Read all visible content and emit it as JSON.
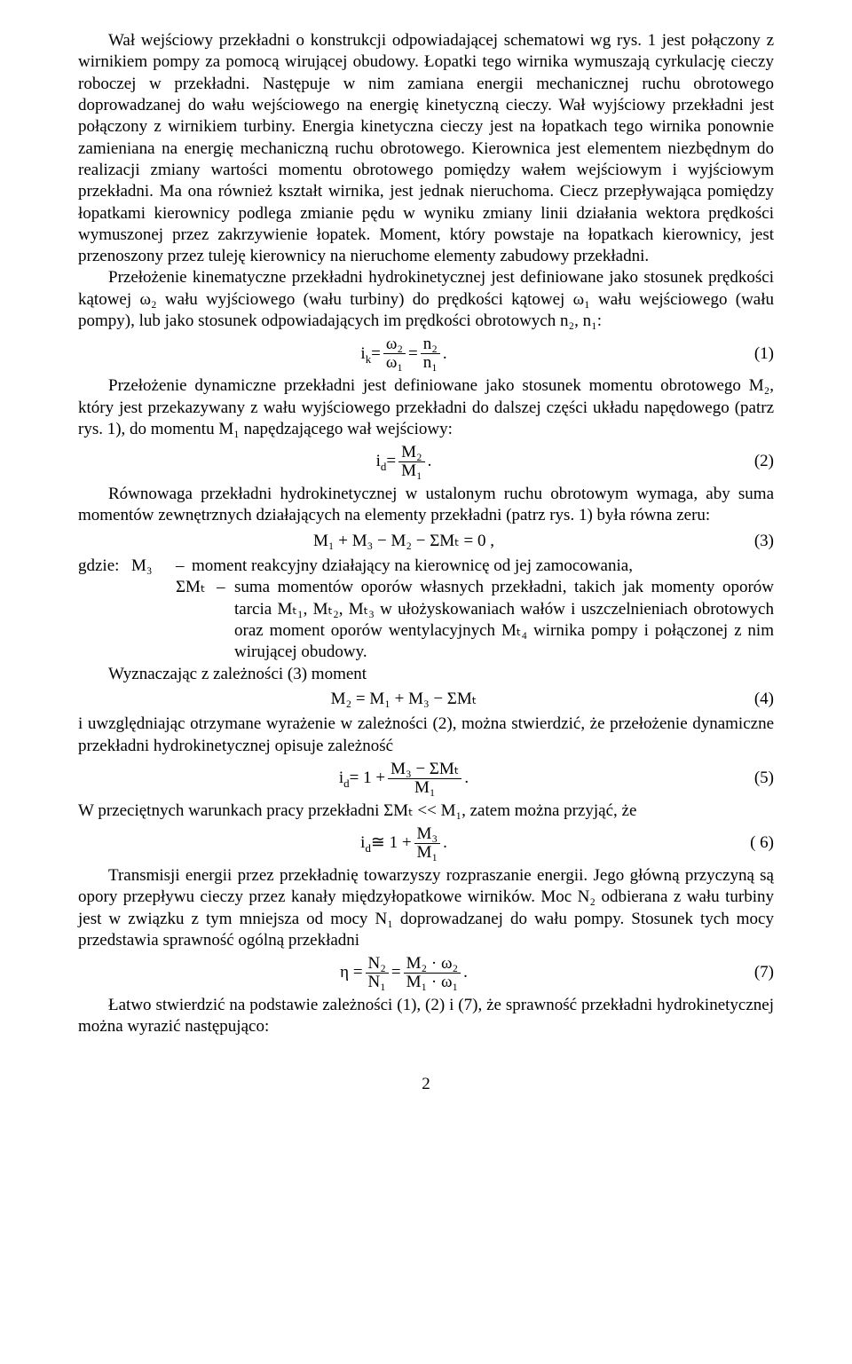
{
  "paragraphs": {
    "p1": "Wał wejściowy przekładni o konstrukcji odpowiadającej schematowi wg rys. 1 jest połączony z wirnikiem pompy za pomocą wirującej obudowy. Łopatki tego wirnika wymuszają cyrkulację cieczy roboczej w przekładni. Następuje w nim zamiana energii mechanicznej ruchu obrotowego doprowadzanej do wału wejściowego na energię kinetyczną cieczy. Wał wyjściowy przekładni jest połączony z wirnikiem turbiny. Energia kinetyczna cieczy jest na łopatkach tego wirnika ponownie zamieniana na energię mechaniczną ruchu obrotowego. Kierownica jest elementem niezbędnym do realizacji zmiany wartości momentu obrotowego pomiędzy wałem wejściowym i wyjściowym przekładni. Ma ona również kształt wirnika, jest jednak nieruchoma. Ciecz przepływająca pomiędzy łopatkami kierownicy podlega zmianie pędu w wyniku zmiany linii działania wektora prędkości wymuszonej przez zakrzywienie łopatek. Moment, który powstaje na łopatkach kierownicy, jest przenoszony przez tuleję kierownicy na nieruchome elementy zabudowy przekładni.",
    "p2": "Przełożenie kinematyczne przekładni hydrokinetycznej jest definiowane jako stosunek prędkości kątowej ω₂ wału wyjściowego (wału turbiny) do prędkości kątowej ω₁ wału wejściowego (wału pompy), lub jako stosunek odpowiadających im prędkości obrotowych n₂, n₁:",
    "p3": "Przełożenie dynamiczne przekładni jest definiowane jako stosunek momentu obrotowego M₂, który jest przekazywany z wału wyjściowego przekładni do dalszej części układu napędowego (patrz rys. 1), do momentu M₁ napędzającego wał wejściowy:",
    "p4": "Równowaga przekładni hydrokinetycznej w ustalonym ruchu obrotowym wymaga, aby suma momentów zewnętrznych działających na elementy przekładni (patrz rys. 1) była równa zeru:",
    "gdzie_label": "gdzie:",
    "m3_sym": "M₃",
    "m3_dash": "–",
    "m3_text": "moment reakcyjny działający na kierownicę od jej zamocowania,",
    "smt_sym": "ΣMₜ",
    "smt_dash": "–",
    "smt_text": "suma momentów oporów własnych przekładni, takich jak momenty oporów tarcia Mₜ₁, Mₜ₂, Mₜ₃ w ułożyskowaniach wałów i uszczelnieniach obrotowych oraz moment oporów wentylacyjnych Mₜ₄ wirnika pompy i połączonej z nim wirującej obudowy.",
    "p5": "Wyznaczając z zależności (3) moment",
    "p6": "i uwzględniając otrzymane wyrażenie w zależności (2), można stwierdzić, że przełożenie dynamiczne przekładni hydrokinetycznej opisuje zależność",
    "p7": "W przeciętnych warunkach pracy przekładni ΣMₜ << M₁, zatem można przyjąć, że",
    "p8": "Transmisji energii przez przekładnię towarzyszy rozpraszanie energii. Jego główną przyczyną są opory przepływu cieczy przez kanały międzyłopatkowe wirników. Moc N₂ odbierana z wału turbiny jest w związku z tym mniejsza od mocy N₁ doprowadzanej do wału pompy. Stosunek tych mocy przedstawia sprawność ogólną przekładni",
    "p9": "Łatwo stwierdzić na podstawie zależności (1), (2) i (7), że sprawność przekładni hydrokinetycznej można wyrazić następująco:"
  },
  "equations": {
    "eq1": {
      "lhs": "i",
      "lhs_sub": "k",
      "frac1_num": "ω₂",
      "frac1_den": "ω₁",
      "eq": " = ",
      "eq2": " = ",
      "frac2_num": "n₂",
      "frac2_den": "n₁",
      "tail": " .",
      "num": "(1)"
    },
    "eq2": {
      "lhs": "i",
      "lhs_sub": "d",
      "eq": " = ",
      "frac_num": "M₂",
      "frac_den": "M₁",
      "tail": " .",
      "num": "(2)"
    },
    "eq3": {
      "text": "M₁ + M₃ − M₂ − ΣMₜ = 0 ,",
      "num": "(3)"
    },
    "eq4": {
      "text": "M₂ = M₁ + M₃ − ΣMₜ",
      "num": "(4)"
    },
    "eq5": {
      "lhs": "i",
      "lhs_sub": "d",
      "mid": " = 1 + ",
      "frac_num": "M₃ − ΣMₜ",
      "frac_den": "M₁",
      "tail": " .",
      "num": "(5)"
    },
    "eq6": {
      "lhs": "i",
      "lhs_sub": "d",
      "mid": " ≅ 1 + ",
      "frac_num": "M₃",
      "frac_den": "M₁",
      "tail": " .",
      "num": "( 6)"
    },
    "eq7": {
      "lhs": "η = ",
      "frac1_num": "N₂",
      "frac1_den": "N₁",
      "mid": " = ",
      "frac2_num": "M₂ · ω₂",
      "frac2_den": "M₁ · ω₁",
      "tail": " .",
      "num": "(7)"
    }
  },
  "pagenum": "2"
}
